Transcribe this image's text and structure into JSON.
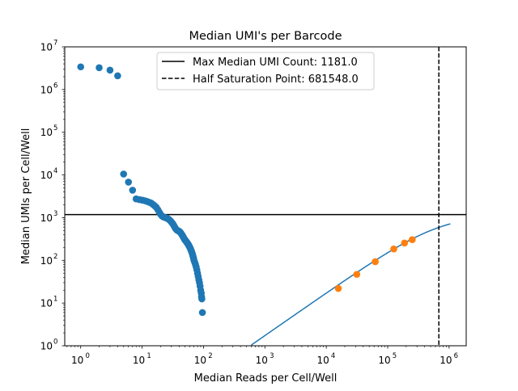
{
  "chart_data": {
    "type": "scatter",
    "title": "Median UMI's per Barcode",
    "xlabel": "Median Reads per Cell/Well",
    "ylabel": "Median UMIs per Cell/Well",
    "xscale": "log",
    "yscale": "log",
    "xlim": [
      0.55,
      1900000
    ],
    "ylim": [
      1,
      10000000
    ],
    "grid": false,
    "legend_position": "top-center",
    "x_ticks": [
      {
        "value": 1,
        "base": "10",
        "exp": "0"
      },
      {
        "value": 10,
        "base": "10",
        "exp": "1"
      },
      {
        "value": 100,
        "base": "10",
        "exp": "2"
      },
      {
        "value": 1000,
        "base": "10",
        "exp": "3"
      },
      {
        "value": 10000,
        "base": "10",
        "exp": "4"
      },
      {
        "value": 100000,
        "base": "10",
        "exp": "5"
      },
      {
        "value": 1000000,
        "base": "10",
        "exp": "6"
      }
    ],
    "y_ticks": [
      {
        "value": 1,
        "base": "10",
        "exp": "0"
      },
      {
        "value": 10,
        "base": "10",
        "exp": "1"
      },
      {
        "value": 100,
        "base": "10",
        "exp": "2"
      },
      {
        "value": 1000,
        "base": "10",
        "exp": "3"
      },
      {
        "value": 10000,
        "base": "10",
        "exp": "4"
      },
      {
        "value": 100000,
        "base": "10",
        "exp": "5"
      },
      {
        "value": 1000000,
        "base": "10",
        "exp": "6"
      },
      {
        "value": 10000000,
        "base": "10",
        "exp": "7"
      }
    ],
    "hline": {
      "label": "Max Median UMI Count: 1181.0",
      "y": 1181.0,
      "color": "#000000",
      "style": "solid"
    },
    "vline": {
      "label": "Half Saturation Point: 681548.0",
      "x": 681548.0,
      "color": "#000000",
      "style": "dashed"
    },
    "fit_curve": {
      "color": "#1f77b4",
      "vmax": 1181.0,
      "km": 681548.0,
      "x_from": 600,
      "x_to": 1050000
    },
    "series": [
      {
        "color": "#1f77b4",
        "points": [
          [
            1,
            3400000
          ],
          [
            2,
            3250000
          ],
          [
            3,
            2850000
          ],
          [
            4,
            2100000
          ],
          [
            5,
            10500
          ],
          [
            6,
            6800
          ],
          [
            7,
            4400
          ],
          [
            8,
            2750
          ],
          [
            9,
            2650
          ],
          [
            10,
            2580
          ],
          [
            11,
            2500
          ],
          [
            12,
            2400
          ],
          [
            13,
            2300
          ],
          [
            14,
            2200
          ],
          [
            15,
            2050
          ],
          [
            16,
            1900
          ],
          [
            17,
            1750
          ],
          [
            18,
            1550
          ],
          [
            19,
            1350
          ],
          [
            20,
            1200
          ],
          [
            21,
            1100
          ],
          [
            22,
            1050
          ],
          [
            23,
            1020
          ],
          [
            24,
            1000
          ],
          [
            25,
            980
          ],
          [
            26,
            950
          ],
          [
            27,
            920
          ],
          [
            28,
            880
          ],
          [
            29,
            840
          ],
          [
            30,
            790
          ],
          [
            31,
            750
          ],
          [
            32,
            700
          ],
          [
            33,
            650
          ],
          [
            34,
            600
          ],
          [
            35,
            560
          ],
          [
            36,
            530
          ],
          [
            37,
            510
          ],
          [
            38,
            500
          ],
          [
            39,
            490
          ],
          [
            40,
            480
          ],
          [
            41,
            470
          ],
          [
            42,
            450
          ],
          [
            43,
            430
          ],
          [
            44,
            410
          ],
          [
            45,
            390
          ],
          [
            46,
            370
          ],
          [
            47,
            350
          ],
          [
            48,
            330
          ],
          [
            49,
            315
          ],
          [
            50,
            300
          ],
          [
            51,
            290
          ],
          [
            52,
            280
          ],
          [
            53,
            270
          ],
          [
            54,
            260
          ],
          [
            55,
            250
          ],
          [
            56,
            240
          ],
          [
            57,
            230
          ],
          [
            58,
            220
          ],
          [
            59,
            210
          ],
          [
            60,
            200
          ],
          [
            61,
            190
          ],
          [
            62,
            180
          ],
          [
            63,
            170
          ],
          [
            64,
            160
          ],
          [
            65,
            150
          ],
          [
            66,
            140
          ],
          [
            67,
            130
          ],
          [
            68,
            120
          ],
          [
            69,
            110
          ],
          [
            70,
            100
          ],
          [
            72,
            90
          ],
          [
            74,
            80
          ],
          [
            76,
            70
          ],
          [
            78,
            60
          ],
          [
            80,
            50
          ],
          [
            82,
            42
          ],
          [
            84,
            35
          ],
          [
            86,
            30
          ],
          [
            88,
            25
          ],
          [
            90,
            20
          ],
          [
            92,
            17
          ],
          [
            93,
            14
          ],
          [
            94,
            12.5
          ],
          [
            96,
            6
          ]
        ]
      },
      {
        "color": "#ff7f0e",
        "points": [
          [
            15700,
            22
          ],
          [
            31400,
            47
          ],
          [
            62800,
            93
          ],
          [
            125600,
            185
          ],
          [
            188000,
            255
          ],
          [
            251000,
            305
          ]
        ]
      }
    ]
  }
}
